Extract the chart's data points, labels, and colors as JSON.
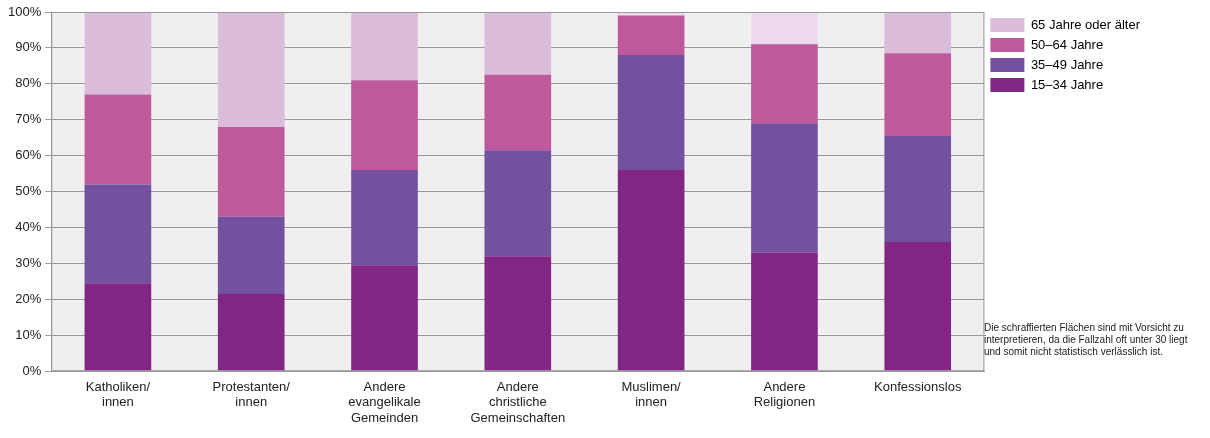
{
  "chart_data": {
    "type": "bar",
    "stacked": true,
    "categories": [
      "Katholiken/innen",
      "Protestanten/innen",
      "Andere evangelikale Gemeinden",
      "Andere christliche Gemeinschaften",
      "Muslimen/innen",
      "Andere Religionen",
      "Konfessionslos"
    ],
    "series": [
      {
        "name": "15–34 Jahre",
        "color": "#822686",
        "values": [
          24.5,
          21.5,
          29.5,
          32,
          56,
          33,
          36
        ]
      },
      {
        "name": "35–49 Jahre",
        "color": "#74519f",
        "values": [
          27.5,
          21.5,
          26.5,
          29.5,
          32,
          36,
          29.5
        ]
      },
      {
        "name": "50–64 Jahre",
        "color": "#be5a9c",
        "values": [
          25,
          25,
          25,
          21,
          11,
          22,
          23
        ]
      },
      {
        "name": "65 Jahre oder älter",
        "color": "#dbbcdb",
        "colors": [
          "#dbbcdb",
          "#dbbcdb",
          "#dbbcdb",
          "#dbbcdb",
          "#eddbed",
          "#eddbed",
          "#dbbcdb"
        ],
        "values": [
          23,
          32,
          19,
          17.5,
          1,
          9,
          11.5
        ]
      }
    ],
    "ylim": [
      0,
      100
    ],
    "yticks": [
      {
        "value": 0,
        "label": "0%"
      },
      {
        "value": 10,
        "label": "10%"
      },
      {
        "value": 20,
        "label": "20%"
      },
      {
        "value": 30,
        "label": "30%"
      },
      {
        "value": 40,
        "label": "40%"
      },
      {
        "value": 50,
        "label": "50%"
      },
      {
        "value": 60,
        "label": "60%"
      },
      {
        "value": 70,
        "label": "70%"
      },
      {
        "value": 80,
        "label": "80%"
      },
      {
        "value": 90,
        "label": "90%"
      },
      {
        "value": 100,
        "label": "100%"
      }
    ],
    "grid": "y",
    "legend": "top right",
    "annotations": [
      "Die schraffierten Flächen sind mit Vorsicht zu interpretieren, da die Fallzahl oft unter 30 liegt und somit nicht statistisch verlässlich ist."
    ]
  }
}
